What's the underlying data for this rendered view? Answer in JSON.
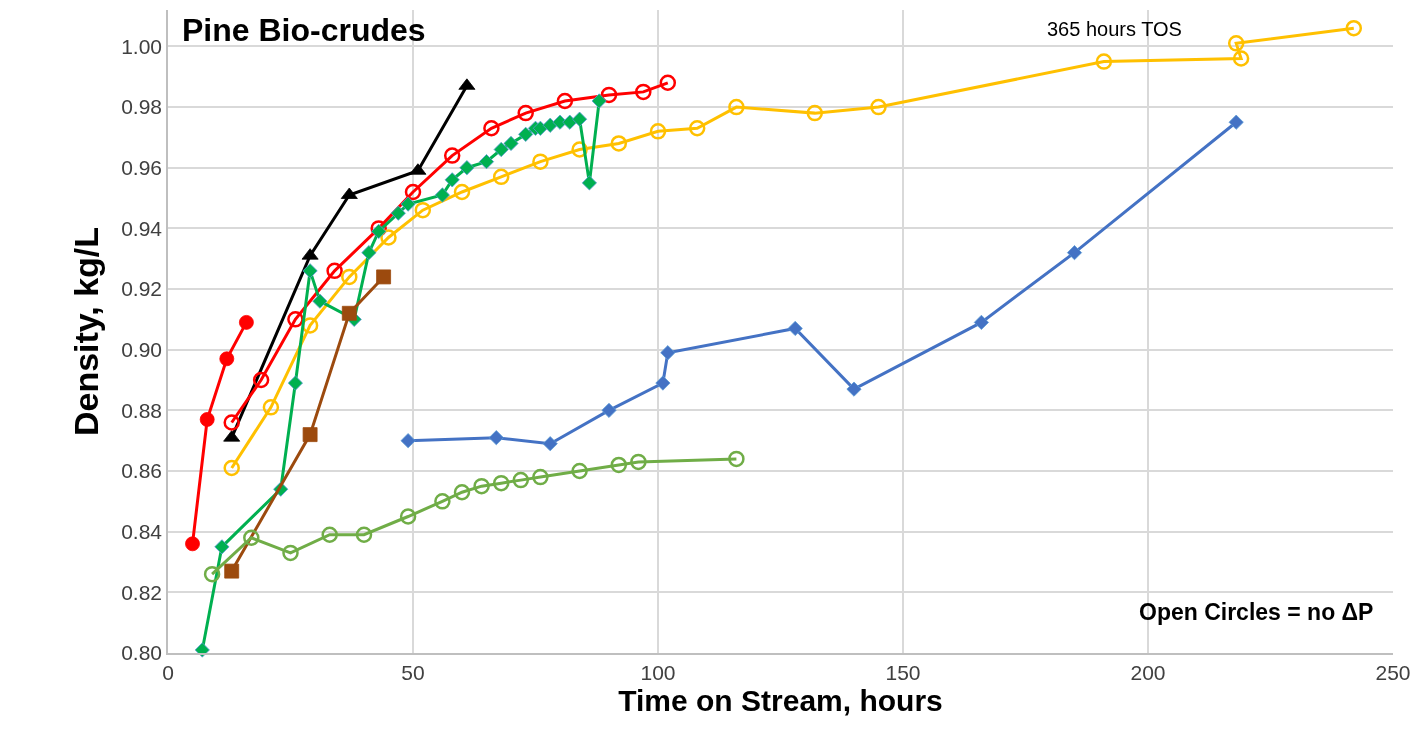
{
  "chart_data": {
    "type": "line",
    "title": "Pine Bio-crudes",
    "xlabel": "Time on Stream, hours",
    "ylabel": "Density, kg/L",
    "annotations": [
      "365 hours TOS",
      "Open Circles = no ΔP"
    ],
    "xlim": [
      0,
      250
    ],
    "xticks": [
      0,
      50,
      100,
      150,
      200,
      250
    ],
    "ylim": [
      0.8,
      1.012
    ],
    "yticks": [
      {
        "value": 0.8,
        "label": "0.80"
      },
      {
        "value": 0.82,
        "label": "0.82"
      },
      {
        "value": 0.84,
        "label": "0.84"
      },
      {
        "value": 0.86,
        "label": "0.86"
      },
      {
        "value": 0.88,
        "label": "0.88"
      },
      {
        "value": 0.9,
        "label": "0.90"
      },
      {
        "value": 0.92,
        "label": "0.92"
      },
      {
        "value": 0.94,
        "label": "0.94"
      },
      {
        "value": 0.96,
        "label": "0.96"
      },
      {
        "value": 0.98,
        "label": "0.98"
      },
      {
        "value": 1.0,
        "label": "1.00"
      }
    ],
    "grid": true,
    "series": [
      {
        "color": "#ff0000",
        "marker": "circle",
        "x": [
          5,
          8,
          12,
          16
        ],
        "values": [
          0.836,
          0.877,
          0.897,
          0.909
        ]
      },
      {
        "color": "#000000",
        "marker": "triangle",
        "x": [
          13,
          29,
          37,
          51,
          61
        ],
        "values": [
          0.871,
          0.931,
          0.951,
          0.959,
          0.987
        ]
      },
      {
        "color": "#ff0000",
        "marker": "circle",
        "x": [
          13,
          19,
          26,
          34,
          43,
          50,
          58,
          66,
          73,
          81,
          90,
          97,
          102
        ],
        "values": [
          0.876,
          0.89,
          0.91,
          0.926,
          0.94,
          0.952,
          0.964,
          0.973,
          0.978,
          0.982,
          0.984,
          0.985,
          0.988
        ]
      },
      {
        "color": "#ffc000",
        "marker": "circle",
        "x": [
          13,
          21,
          29,
          37,
          45,
          52,
          60,
          68,
          76,
          84,
          92,
          100,
          108,
          116,
          132,
          145,
          191,
          219,
          218,
          242
        ],
        "values": [
          0.861,
          0.881,
          0.908,
          0.924,
          0.937,
          0.946,
          0.952,
          0.957,
          0.962,
          0.966,
          0.968,
          0.972,
          0.973,
          0.98,
          0.978,
          0.98,
          0.995,
          0.996,
          1.001,
          1.006
        ]
      },
      {
        "color": "#00b050",
        "marker": "diamond",
        "x": [
          7,
          11,
          23,
          26,
          29,
          31,
          38,
          41,
          43,
          47,
          49,
          56,
          58,
          61,
          65,
          68,
          70,
          73,
          75,
          76,
          78,
          80,
          82,
          84,
          86,
          88
        ],
        "values": [
          0.801,
          0.835,
          0.854,
          0.889,
          0.926,
          0.916,
          0.91,
          0.932,
          0.939,
          0.945,
          0.948,
          0.951,
          0.956,
          0.96,
          0.962,
          0.966,
          0.968,
          0.971,
          0.973,
          0.973,
          0.974,
          0.975,
          0.975,
          0.976,
          0.955,
          0.982
        ]
      },
      {
        "color": "#9c4a0e",
        "marker": "square",
        "x": [
          13,
          29,
          37,
          44
        ],
        "values": [
          0.827,
          0.872,
          0.912,
          0.924
        ]
      },
      {
        "color": "#4472c4",
        "marker": "diamond",
        "x": [
          49,
          67,
          78,
          90,
          101,
          102,
          128,
          140,
          166,
          185,
          218
        ],
        "values": [
          0.87,
          0.871,
          0.869,
          0.88,
          0.889,
          0.899,
          0.907,
          0.887,
          0.909,
          0.932,
          0.975
        ]
      },
      {
        "color": "#70ad47",
        "marker": "circle",
        "x": [
          9,
          17,
          25,
          33,
          40,
          49,
          56,
          60,
          64,
          68,
          72,
          76,
          84,
          92,
          96,
          116
        ],
        "values": [
          0.826,
          0.838,
          0.833,
          0.839,
          0.839,
          0.845,
          0.85,
          0.853,
          0.855,
          0.856,
          0.857,
          0.858,
          0.86,
          0.862,
          0.863,
          0.864
        ]
      }
    ]
  }
}
